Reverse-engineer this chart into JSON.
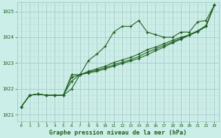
{
  "title": "Graphe pression niveau de la mer (hPa)",
  "bg_color": "#cceee8",
  "grid_major_color": "#aacccc",
  "grid_minor_color": "#c0ddd8",
  "line_color": "#1e5e1e",
  "xlim": [
    -0.5,
    23.5
  ],
  "ylim": [
    1020.75,
    1025.35
  ],
  "yticks": [
    1021,
    1022,
    1023,
    1024,
    1025
  ],
  "xticks": [
    0,
    1,
    2,
    3,
    4,
    5,
    6,
    7,
    8,
    9,
    10,
    11,
    12,
    13,
    14,
    15,
    16,
    17,
    18,
    19,
    20,
    21,
    22,
    23
  ],
  "series": [
    [
      1021.3,
      1021.75,
      1021.8,
      1021.75,
      1021.75,
      1021.75,
      1022.3,
      1022.55,
      1023.1,
      1023.35,
      1023.65,
      1024.2,
      1024.42,
      1024.42,
      1024.65,
      1024.2,
      1024.1,
      1024.0,
      1024.0,
      1024.2,
      1024.2,
      1024.6,
      1024.65,
      1025.25
    ],
    [
      1021.3,
      1021.75,
      1021.8,
      1021.75,
      1021.75,
      1021.75,
      1022.55,
      1022.55,
      1022.62,
      1022.68,
      1022.78,
      1022.88,
      1022.98,
      1023.08,
      1023.18,
      1023.32,
      1023.48,
      1023.62,
      1023.78,
      1023.92,
      1024.08,
      1024.22,
      1024.42,
      1025.25
    ],
    [
      1021.3,
      1021.75,
      1021.8,
      1021.75,
      1021.75,
      1021.75,
      1022.45,
      1022.55,
      1022.65,
      1022.72,
      1022.82,
      1022.93,
      1023.03,
      1023.13,
      1023.25,
      1023.42,
      1023.55,
      1023.68,
      1023.82,
      1023.95,
      1024.1,
      1024.25,
      1024.45,
      1025.25
    ],
    [
      1021.3,
      1021.75,
      1021.8,
      1021.75,
      1021.75,
      1021.75,
      1022.0,
      1022.55,
      1022.68,
      1022.78,
      1022.88,
      1023.02,
      1023.12,
      1023.22,
      1023.35,
      1023.52,
      1023.62,
      1023.75,
      1023.88,
      1024.0,
      1024.08,
      1024.22,
      1024.42,
      1025.25
    ]
  ]
}
